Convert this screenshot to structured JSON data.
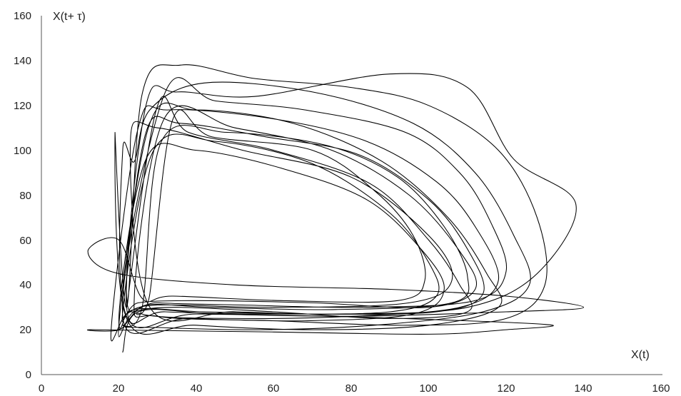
{
  "chart_data": {
    "type": "line",
    "title": "",
    "xlabel": "X(t)",
    "ylabel": "X(t+ τ)",
    "xlim": [
      0,
      160
    ],
    "ylim": [
      0,
      160
    ],
    "x_ticks": [
      "0",
      "20",
      "40",
      "60",
      "80",
      "100",
      "120",
      "140",
      "160"
    ],
    "y_ticks": [
      "0",
      "20",
      "40",
      "60",
      "80",
      "100",
      "120",
      "140",
      "160"
    ],
    "grid": false,
    "legend": "none",
    "line_color": "#000000",
    "series": [
      {
        "points": [
          [
            22,
            30
          ],
          [
            30,
            120
          ],
          [
            38,
            108
          ],
          [
            60,
            100
          ],
          [
            85,
            85
          ],
          [
            100,
            60
          ],
          [
            108,
            40
          ],
          [
            110,
            28
          ],
          [
            90,
            25
          ],
          [
            60,
            28
          ],
          [
            35,
            30
          ],
          [
            24,
            28
          ],
          [
            20,
            22
          ],
          [
            28,
            112
          ],
          [
            40,
            118
          ],
          [
            65,
            112
          ],
          [
            88,
            95
          ],
          [
            105,
            70
          ],
          [
            115,
            45
          ],
          [
            118,
            30
          ],
          [
            100,
            22
          ],
          [
            70,
            20
          ],
          [
            40,
            22
          ],
          [
            22,
            25
          ],
          [
            19,
            108
          ],
          [
            22,
            30
          ],
          [
            26,
            125
          ],
          [
            36,
            138
          ],
          [
            55,
            132
          ],
          [
            80,
            128
          ],
          [
            100,
            120
          ],
          [
            118,
            100
          ],
          [
            128,
            70
          ],
          [
            130,
            40
          ],
          [
            120,
            25
          ],
          [
            95,
            22
          ],
          [
            60,
            24
          ],
          [
            30,
            26
          ],
          [
            24,
            35
          ],
          [
            32,
            115
          ],
          [
            50,
            110
          ],
          [
            75,
            100
          ],
          [
            95,
            80
          ],
          [
            108,
            55
          ],
          [
            112,
            38
          ],
          [
            100,
            30
          ],
          [
            70,
            32
          ],
          [
            40,
            33
          ],
          [
            25,
            32
          ],
          [
            21,
            28
          ],
          [
            29,
            100
          ],
          [
            45,
            104
          ],
          [
            70,
            94
          ],
          [
            90,
            72
          ],
          [
            100,
            50
          ],
          [
            102,
            35
          ],
          [
            90,
            28
          ],
          [
            60,
            27
          ],
          [
            32,
            28
          ],
          [
            22,
            30
          ],
          [
            27,
            120
          ],
          [
            35,
            126
          ],
          [
            55,
            124
          ],
          [
            90,
            134
          ],
          [
            110,
            128
          ],
          [
            122,
            96
          ],
          [
            138,
            76
          ],
          [
            128,
            45
          ],
          [
            110,
            30
          ],
          [
            80,
            27
          ],
          [
            50,
            28
          ],
          [
            28,
            30
          ],
          [
            23,
            105
          ],
          [
            30,
            110
          ],
          [
            52,
            100
          ],
          [
            80,
            88
          ],
          [
            100,
            62
          ],
          [
            106,
            42
          ],
          [
            95,
            32
          ],
          [
            60,
            30
          ],
          [
            30,
            31
          ],
          [
            22,
            27
          ],
          [
            18,
            20
          ],
          [
            25,
            110
          ],
          [
            33,
            118
          ],
          [
            60,
            114
          ],
          [
            84,
            104
          ],
          [
            102,
            86
          ],
          [
            112,
            66
          ],
          [
            118,
            42
          ],
          [
            108,
            30
          ],
          [
            80,
            26
          ],
          [
            50,
            25
          ],
          [
            26,
            27
          ],
          [
            28,
            36
          ],
          [
            34,
            114
          ],
          [
            44,
            106
          ],
          [
            70,
            100
          ],
          [
            86,
            82
          ],
          [
            96,
            62
          ],
          [
            99,
            42
          ],
          [
            92,
            33
          ],
          [
            62,
            33
          ],
          [
            34,
            35
          ],
          [
            26,
            34
          ],
          [
            20,
            60
          ],
          [
            12,
            55
          ],
          [
            20,
            45
          ],
          [
            50,
            40
          ],
          [
            90,
            38
          ],
          [
            120,
            35
          ],
          [
            140,
            30
          ],
          [
            120,
            28
          ],
          [
            80,
            26
          ],
          [
            40,
            27
          ],
          [
            22,
            26
          ],
          [
            21,
            100
          ],
          [
            24,
            95
          ],
          [
            28,
            118
          ],
          [
            42,
            130
          ],
          [
            70,
            126
          ],
          [
            96,
            112
          ],
          [
            112,
            90
          ],
          [
            122,
            62
          ],
          [
            126,
            40
          ],
          [
            114,
            28
          ],
          [
            86,
            22
          ],
          [
            56,
            20
          ],
          [
            30,
            21
          ],
          [
            21,
            22
          ],
          [
            26,
            30
          ],
          [
            31,
            104
          ],
          [
            48,
            108
          ],
          [
            74,
            102
          ],
          [
            92,
            88
          ],
          [
            104,
            66
          ],
          [
            110,
            44
          ],
          [
            106,
            32
          ],
          [
            76,
            29
          ],
          [
            44,
            30
          ],
          [
            27,
            31
          ],
          [
            20,
            24
          ],
          [
            27,
            96
          ],
          [
            40,
            100
          ],
          [
            62,
            92
          ],
          [
            84,
            78
          ],
          [
            98,
            56
          ],
          [
            104,
            38
          ],
          [
            96,
            27
          ],
          [
            68,
            24
          ],
          [
            38,
            25
          ],
          [
            21,
            26
          ],
          [
            32,
            126
          ],
          [
            45,
            122
          ],
          [
            68,
            118
          ],
          [
            94,
            108
          ],
          [
            108,
            90
          ],
          [
            116,
            68
          ],
          [
            120,
            46
          ],
          [
            112,
            33
          ],
          [
            84,
            30
          ],
          [
            52,
            31
          ],
          [
            30,
            32
          ],
          [
            22,
            34
          ],
          [
            27,
            108
          ],
          [
            36,
            112
          ],
          [
            58,
            106
          ],
          [
            82,
            98
          ],
          [
            100,
            78
          ],
          [
            110,
            56
          ],
          [
            114,
            36
          ],
          [
            102,
            28
          ],
          [
            72,
            27
          ],
          [
            42,
            28
          ],
          [
            24,
            29
          ],
          [
            20,
            20
          ],
          [
            14,
            20
          ],
          [
            60,
            19
          ],
          [
            100,
            18
          ],
          [
            120,
            20
          ],
          [
            132,
            22
          ],
          [
            110,
            24
          ],
          [
            75,
            26
          ],
          [
            45,
            27
          ],
          [
            25,
            28
          ],
          [
            21,
            10
          ]
        ]
      }
    ]
  }
}
